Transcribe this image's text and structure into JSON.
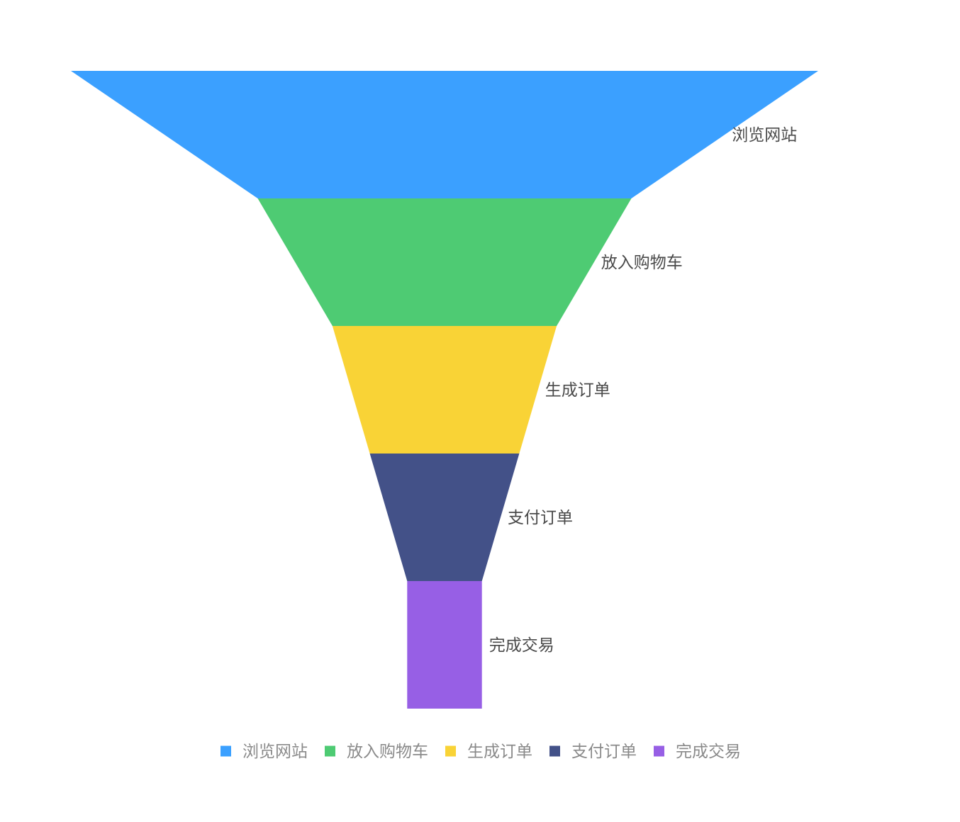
{
  "chart_data": {
    "type": "funnel",
    "categories": [
      "浏览网站",
      "放入购物车",
      "生成订单",
      "支付订单",
      "完成交易"
    ],
    "values": [
      100,
      50,
      30,
      20,
      10
    ],
    "colors": [
      "#3ba0ff",
      "#4ecb73",
      "#f9d336",
      "#435188",
      "#975fe5"
    ],
    "legend": {
      "position": "bottom-center",
      "entries": [
        "浏览网站",
        "放入购物车",
        "生成订单",
        "支付订单",
        "完成交易"
      ]
    },
    "label_position": "right",
    "label_color": "#4a4a4a",
    "legend_color": "#8a8a8a"
  }
}
